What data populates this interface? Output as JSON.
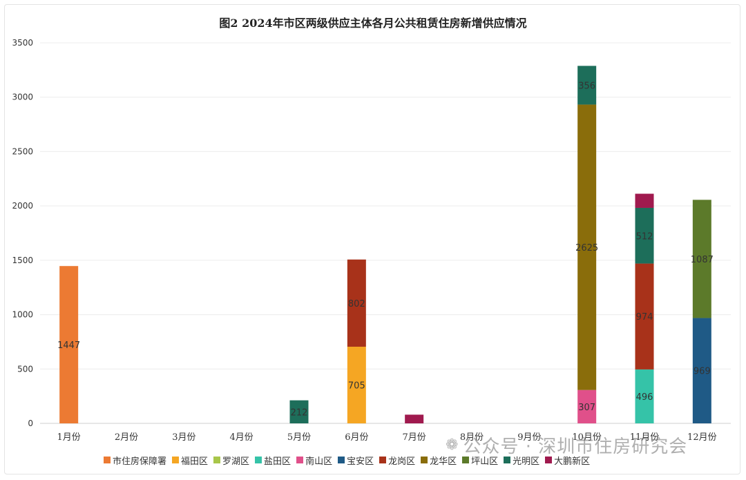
{
  "chart_data": {
    "type": "bar",
    "stacked": true,
    "title": "图2 2024年市区两级供应主体各月公共租赁住房新增供应情况",
    "categories": [
      "1月份",
      "2月份",
      "3月份",
      "4月份",
      "5月份",
      "6月份",
      "7月份",
      "8月份",
      "9月份",
      "10月份",
      "11月份",
      "12月份"
    ],
    "ylim": [
      0,
      3500
    ],
    "yticks": [
      0,
      500,
      1000,
      1500,
      2000,
      2500,
      3000,
      3500
    ],
    "grid": true,
    "legend_position": "bottom",
    "series": [
      {
        "name": "市住房保障署",
        "color": "#ec7a33",
        "values": [
          1447,
          0,
          0,
          0,
          0,
          0,
          0,
          0,
          0,
          0,
          0,
          0
        ],
        "labels": [
          "1447",
          "",
          "",
          "",
          "",
          "",
          "",
          "",
          "",
          "",
          "",
          ""
        ]
      },
      {
        "name": "福田区",
        "color": "#f5a623",
        "values": [
          0,
          0,
          0,
          0,
          0,
          705,
          0,
          0,
          0,
          0,
          0,
          0
        ],
        "labels": [
          "",
          "",
          "",
          "",
          "",
          "705",
          "",
          "",
          "",
          "",
          "",
          ""
        ]
      },
      {
        "name": "罗湖区",
        "color": "#a8c64a",
        "values": [
          0,
          0,
          0,
          0,
          0,
          0,
          0,
          0,
          0,
          0,
          0,
          0
        ],
        "labels": [
          "",
          "",
          "",
          "",
          "",
          "",
          "",
          "",
          "",
          "",
          "",
          ""
        ]
      },
      {
        "name": "盐田区",
        "color": "#35c3a8",
        "values": [
          0,
          0,
          0,
          0,
          0,
          0,
          0,
          0,
          0,
          0,
          496,
          0
        ],
        "labels": [
          "",
          "",
          "",
          "",
          "",
          "",
          "",
          "",
          "",
          "",
          "496",
          ""
        ]
      },
      {
        "name": "南山区",
        "color": "#e0508a",
        "values": [
          0,
          0,
          0,
          0,
          0,
          0,
          0,
          0,
          0,
          307,
          0,
          0
        ],
        "labels": [
          "",
          "",
          "",
          "",
          "",
          "",
          "",
          "",
          "",
          "307",
          "",
          ""
        ]
      },
      {
        "name": "宝安区",
        "color": "#1f5a86",
        "values": [
          0,
          0,
          0,
          0,
          0,
          0,
          0,
          0,
          0,
          0,
          0,
          969
        ],
        "labels": [
          "",
          "",
          "",
          "",
          "",
          "",
          "",
          "",
          "",
          "",
          "",
          "969"
        ]
      },
      {
        "name": "龙岗区",
        "color": "#a8321a",
        "values": [
          0,
          0,
          0,
          0,
          0,
          802,
          0,
          0,
          0,
          0,
          974,
          0
        ],
        "labels": [
          "",
          "",
          "",
          "",
          "",
          "802",
          "",
          "",
          "",
          "",
          "974",
          ""
        ]
      },
      {
        "name": "龙华区",
        "color": "#8a6d0b",
        "values": [
          0,
          0,
          0,
          0,
          0,
          0,
          0,
          0,
          0,
          2625,
          0,
          0
        ],
        "labels": [
          "",
          "",
          "",
          "",
          "",
          "",
          "",
          "",
          "",
          "2625",
          "",
          ""
        ]
      },
      {
        "name": "坪山区",
        "color": "#5c7a2a",
        "values": [
          0,
          0,
          0,
          0,
          0,
          0,
          0,
          0,
          0,
          0,
          0,
          1087
        ],
        "labels": [
          "",
          "",
          "",
          "",
          "",
          "",
          "",
          "",
          "",
          "",
          "",
          "1087"
        ]
      },
      {
        "name": "光明区",
        "color": "#1d6e5a",
        "values": [
          0,
          0,
          0,
          0,
          212,
          0,
          0,
          0,
          0,
          356,
          512,
          0
        ],
        "labels": [
          "",
          "",
          "",
          "",
          "212",
          "",
          "",
          "",
          "",
          "356",
          "512",
          ""
        ]
      },
      {
        "name": "大鹏新区",
        "color": "#a01a4e",
        "values": [
          0,
          0,
          0,
          0,
          0,
          0,
          80,
          0,
          0,
          0,
          130,
          0
        ],
        "labels": [
          "",
          "",
          "",
          "",
          "",
          "",
          "",
          "",
          "",
          "",
          "",
          ""
        ]
      }
    ]
  },
  "watermark": {
    "icon": "wechat-icon",
    "text": "公众号 · 深圳市住房研究会"
  }
}
